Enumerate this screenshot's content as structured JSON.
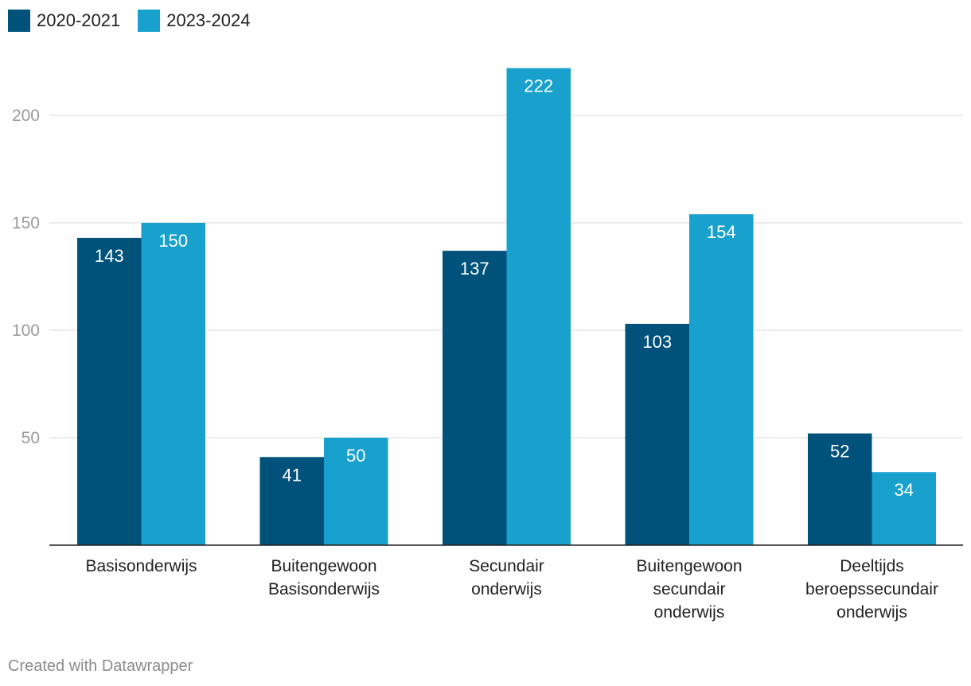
{
  "chart_data": {
    "type": "bar",
    "title": "",
    "xlabel": "",
    "ylabel": "",
    "ylim": [
      0,
      222
    ],
    "yticks": [
      50,
      100,
      150,
      200
    ],
    "categories": [
      [
        "Basisonderwijs"
      ],
      [
        "Buitengewoon",
        "Basisonderwijs"
      ],
      [
        "Secundair",
        "onderwijs"
      ],
      [
        "Buitengewoon",
        "secundair",
        "onderwijs"
      ],
      [
        "Deeltijds",
        "beroepssecundair",
        "onderwijs"
      ]
    ],
    "series": [
      {
        "name": "2020-2021",
        "color": "#00527a",
        "values": [
          143,
          41,
          137,
          103,
          52
        ]
      },
      {
        "name": "2023-2024",
        "color": "#18a1cd",
        "values": [
          150,
          50,
          222,
          154,
          34
        ]
      }
    ],
    "legend_position": "top-left",
    "grid": true
  },
  "legend": {
    "series1": "2020-2021",
    "series2": "2023-2024",
    "color1": "#00527a",
    "color2": "#18a1cd"
  },
  "footer": {
    "credit": "Created with Datawrapper"
  }
}
